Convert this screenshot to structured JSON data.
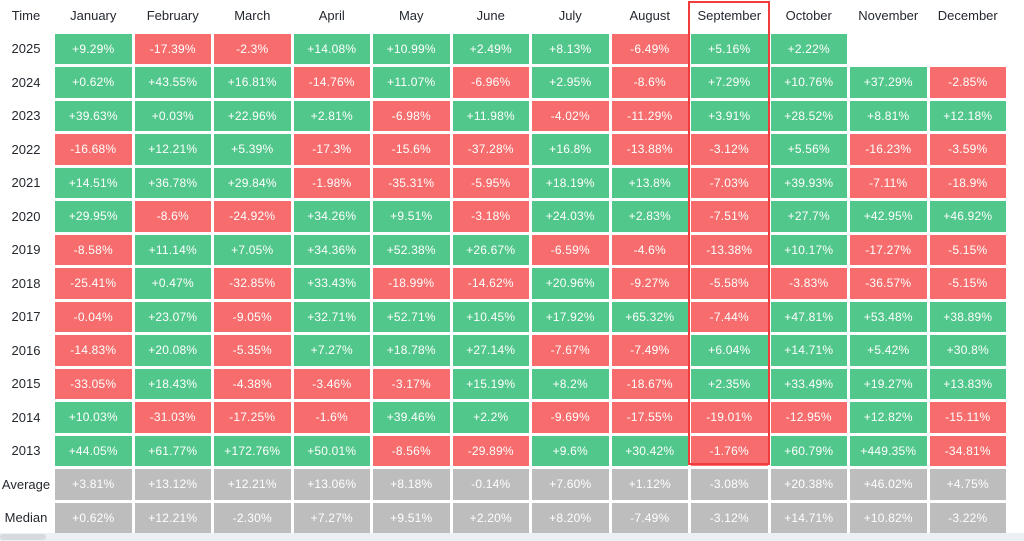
{
  "colors": {
    "positive": "#52c78b",
    "negative": "#f76d6d",
    "summary": "#bdbdbd",
    "highlight_border": "#f23c3c",
    "header_text": "#24292f",
    "value_text": "#ffffff",
    "scrollbar_track": "#eceff3",
    "scrollbar_thumb": "#d7dade"
  },
  "chart_data": {
    "type": "heatmap",
    "corner_label": "Time",
    "columns": [
      "January",
      "February",
      "March",
      "April",
      "May",
      "June",
      "July",
      "August",
      "September",
      "October",
      "November",
      "December"
    ],
    "highlighted_column": "September",
    "legend": "green = positive monthly return, red = negative monthly return, gray = summary rows",
    "rows": [
      {
        "label": "2025",
        "kind": "year",
        "values": [
          "+9.29%",
          "-17.39%",
          "-2.3%",
          "+14.08%",
          "+10.99%",
          "+2.49%",
          "+8.13%",
          "-6.49%",
          "+5.16%",
          "+2.22%",
          "",
          ""
        ]
      },
      {
        "label": "2024",
        "kind": "year",
        "values": [
          "+0.62%",
          "+43.55%",
          "+16.81%",
          "-14.76%",
          "+11.07%",
          "-6.96%",
          "+2.95%",
          "-8.6%",
          "+7.29%",
          "+10.76%",
          "+37.29%",
          "-2.85%"
        ]
      },
      {
        "label": "2023",
        "kind": "year",
        "values": [
          "+39.63%",
          "+0.03%",
          "+22.96%",
          "+2.81%",
          "-6.98%",
          "+11.98%",
          "-4.02%",
          "-11.29%",
          "+3.91%",
          "+28.52%",
          "+8.81%",
          "+12.18%"
        ]
      },
      {
        "label": "2022",
        "kind": "year",
        "values": [
          "-16.68%",
          "+12.21%",
          "+5.39%",
          "-17.3%",
          "-15.6%",
          "-37.28%",
          "+16.8%",
          "-13.88%",
          "-3.12%",
          "+5.56%",
          "-16.23%",
          "-3.59%"
        ]
      },
      {
        "label": "2021",
        "kind": "year",
        "values": [
          "+14.51%",
          "+36.78%",
          "+29.84%",
          "-1.98%",
          "-35.31%",
          "-5.95%",
          "+18.19%",
          "+13.8%",
          "-7.03%",
          "+39.93%",
          "-7.11%",
          "-18.9%"
        ]
      },
      {
        "label": "2020",
        "kind": "year",
        "values": [
          "+29.95%",
          "-8.6%",
          "-24.92%",
          "+34.26%",
          "+9.51%",
          "-3.18%",
          "+24.03%",
          "+2.83%",
          "-7.51%",
          "+27.7%",
          "+42.95%",
          "+46.92%"
        ]
      },
      {
        "label": "2019",
        "kind": "year",
        "values": [
          "-8.58%",
          "+11.14%",
          "+7.05%",
          "+34.36%",
          "+52.38%",
          "+26.67%",
          "-6.59%",
          "-4.6%",
          "-13.38%",
          "+10.17%",
          "-17.27%",
          "-5.15%"
        ]
      },
      {
        "label": "2018",
        "kind": "year",
        "values": [
          "-25.41%",
          "+0.47%",
          "-32.85%",
          "+33.43%",
          "-18.99%",
          "-14.62%",
          "+20.96%",
          "-9.27%",
          "-5.58%",
          "-3.83%",
          "-36.57%",
          "-5.15%"
        ]
      },
      {
        "label": "2017",
        "kind": "year",
        "values": [
          "-0.04%",
          "+23.07%",
          "-9.05%",
          "+32.71%",
          "+52.71%",
          "+10.45%",
          "+17.92%",
          "+65.32%",
          "-7.44%",
          "+47.81%",
          "+53.48%",
          "+38.89%"
        ]
      },
      {
        "label": "2016",
        "kind": "year",
        "values": [
          "-14.83%",
          "+20.08%",
          "-5.35%",
          "+7.27%",
          "+18.78%",
          "+27.14%",
          "-7.67%",
          "-7.49%",
          "+6.04%",
          "+14.71%",
          "+5.42%",
          "+30.8%"
        ]
      },
      {
        "label": "2015",
        "kind": "year",
        "values": [
          "-33.05%",
          "+18.43%",
          "-4.38%",
          "-3.46%",
          "-3.17%",
          "+15.19%",
          "+8.2%",
          "-18.67%",
          "+2.35%",
          "+33.49%",
          "+19.27%",
          "+13.83%"
        ]
      },
      {
        "label": "2014",
        "kind": "year",
        "values": [
          "+10.03%",
          "-31.03%",
          "-17.25%",
          "-1.6%",
          "+39.46%",
          "+2.2%",
          "-9.69%",
          "-17.55%",
          "-19.01%",
          "-12.95%",
          "+12.82%",
          "-15.11%"
        ]
      },
      {
        "label": "2013",
        "kind": "year",
        "values": [
          "+44.05%",
          "+61.77%",
          "+172.76%",
          "+50.01%",
          "-8.56%",
          "-29.89%",
          "+9.6%",
          "+30.42%",
          "-1.76%",
          "+60.79%",
          "+449.35%",
          "-34.81%"
        ]
      },
      {
        "label": "Average",
        "kind": "summary",
        "values": [
          "+3.81%",
          "+13.12%",
          "+12.21%",
          "+13.06%",
          "+8.18%",
          "-0.14%",
          "+7.60%",
          "+1.12%",
          "-3.08%",
          "+20.38%",
          "+46.02%",
          "+4.75%"
        ]
      },
      {
        "label": "Median",
        "kind": "summary",
        "values": [
          "+0.62%",
          "+12.21%",
          "-2.30%",
          "+7.27%",
          "+9.51%",
          "+2.20%",
          "+8.20%",
          "-7.49%",
          "-3.12%",
          "+14.71%",
          "+10.82%",
          "-3.22%"
        ]
      }
    ]
  }
}
